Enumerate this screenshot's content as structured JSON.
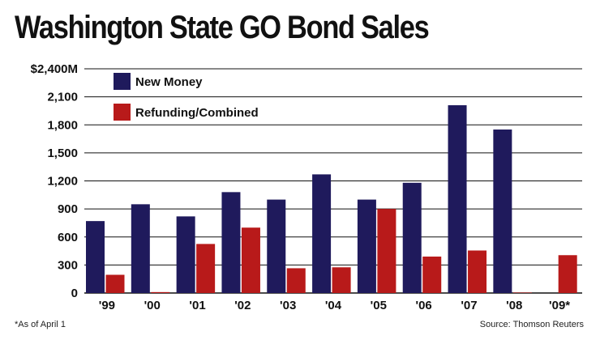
{
  "chart_data": {
    "type": "bar",
    "title": "Washington State GO Bond Sales",
    "xlabel": "",
    "ylabel": "",
    "ylim": [
      0,
      2400
    ],
    "y_ticks": [
      {
        "value": 0,
        "label": "0"
      },
      {
        "value": 300,
        "label": "300"
      },
      {
        "value": 600,
        "label": "600"
      },
      {
        "value": 900,
        "label": "900"
      },
      {
        "value": 1200,
        "label": "1,200"
      },
      {
        "value": 1500,
        "label": "1,500"
      },
      {
        "value": 1800,
        "label": "1,800"
      },
      {
        "value": 2100,
        "label": "2,100"
      },
      {
        "value": 2400,
        "label": "$2,400M"
      }
    ],
    "categories": [
      "'99",
      "'00",
      "'01",
      "'02",
      "'03",
      "'04",
      "'05",
      "'06",
      "'07",
      "'08",
      "'09*"
    ],
    "series": [
      {
        "name": "New Money",
        "color": "#1f1a5c",
        "values": [
          770,
          950,
          820,
          1080,
          1000,
          1270,
          1000,
          1180,
          2010,
          1750,
          0
        ]
      },
      {
        "name": "Refunding/Combined",
        "color": "#b81a1a",
        "values": [
          195,
          10,
          525,
          700,
          265,
          275,
          900,
          390,
          455,
          5,
          405
        ]
      }
    ],
    "grid": true,
    "legend_position": "top-left"
  },
  "footnote": "*As of April 1",
  "source": "Source: Thomson Reuters"
}
